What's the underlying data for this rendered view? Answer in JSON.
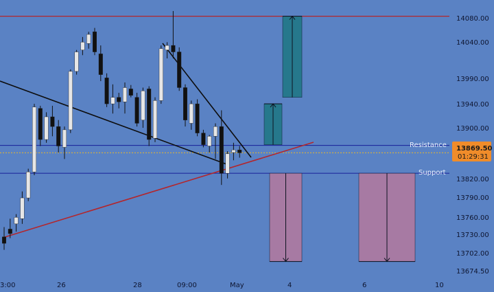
{
  "chart_data": {
    "type": "candlestick",
    "title": "",
    "ylim": [
      13655,
      14105
    ],
    "y_ticks": [
      "14080.00",
      "14040.00",
      "13990.00",
      "13940.00",
      "13900.00",
      "13820.00",
      "13790.00",
      "13760.00",
      "13730.00",
      "13702.00",
      "13674.50"
    ],
    "x_ticks": [
      "3:00",
      "26",
      "28",
      "09:00",
      "May",
      "4",
      "6",
      "10"
    ],
    "current_price": "13869.50",
    "countdown": "01:29:31",
    "levels": {
      "resistance_label": "Resistance",
      "resistance_price": 13881,
      "support_label": "Support",
      "support_price": 13838,
      "top_line_price": 14080
    },
    "candles": [
      [
        13740,
        13755,
        13720,
        13730
      ],
      [
        13752,
        13768,
        13738,
        13745
      ],
      [
        13760,
        13775,
        13748,
        13770
      ],
      [
        13768,
        13810,
        13760,
        13800
      ],
      [
        13800,
        13845,
        13795,
        13840
      ],
      [
        13840,
        13945,
        13835,
        13940
      ],
      [
        13938,
        13942,
        13880,
        13890
      ],
      [
        13890,
        13932,
        13885,
        13925
      ],
      [
        13925,
        13942,
        13895,
        13910
      ],
      [
        13910,
        13920,
        13870,
        13880
      ],
      [
        13878,
        13910,
        13860,
        13905
      ],
      [
        13905,
        13998,
        13900,
        13995
      ],
      [
        13995,
        14028,
        13990,
        14025
      ],
      [
        14028,
        14048,
        14020,
        14040
      ],
      [
        14038,
        14056,
        14030,
        14052
      ],
      [
        14056,
        14062,
        14020,
        14025
      ],
      [
        14022,
        14035,
        13980,
        13990
      ],
      [
        13985,
        13992,
        13940,
        13945
      ],
      [
        13945,
        13975,
        13930,
        13955
      ],
      [
        13955,
        13962,
        13938,
        13948
      ],
      [
        13948,
        13978,
        13930,
        13970
      ],
      [
        13968,
        13974,
        13955,
        13958
      ],
      [
        13955,
        13962,
        13910,
        13915
      ],
      [
        13920,
        13970,
        13908,
        13965
      ],
      [
        13968,
        13972,
        13880,
        13890
      ],
      [
        13892,
        13955,
        13886,
        13950
      ],
      [
        13950,
        14035,
        13945,
        14030
      ],
      [
        14028,
        14040,
        14015,
        14035
      ],
      [
        14035,
        14088,
        14015,
        14025
      ],
      [
        14025,
        14032,
        13965,
        13970
      ],
      [
        13970,
        13975,
        13910,
        13920
      ],
      [
        13915,
        13950,
        13905,
        13945
      ],
      [
        13945,
        13952,
        13895,
        13900
      ],
      [
        13900,
        13905,
        13878,
        13882
      ],
      [
        13880,
        13897,
        13870,
        13895
      ],
      [
        13895,
        13915,
        13860,
        13910
      ],
      [
        13910,
        13935,
        13820,
        13838
      ],
      [
        13838,
        13872,
        13830,
        13868
      ],
      [
        13870,
        13885,
        13858,
        13874
      ],
      [
        13874,
        13880,
        13862,
        13869.5
      ]
    ],
    "projections": [
      {
        "direction": "up",
        "from": 13882,
        "to": 13945,
        "color": "#26788c"
      },
      {
        "direction": "up",
        "from": 13955,
        "to": 14080,
        "color": "#26788c"
      },
      {
        "direction": "down",
        "from": 13838,
        "to": 13702,
        "color": "#a77aa3"
      },
      {
        "direction": "down",
        "from": 13838,
        "to": 13702,
        "color": "#a77aa3"
      }
    ]
  }
}
